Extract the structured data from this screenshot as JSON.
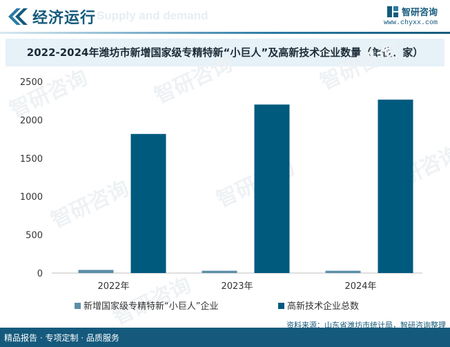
{
  "header": {
    "title": "经济运行",
    "bg_text": "Supply and demand",
    "brand_name": "智研咨询",
    "brand_url": "www.chyxx.com",
    "brand_icon": "brand-logo-icon",
    "accent_color": "#155a7c"
  },
  "footer": {
    "left_text": "精品报告 · 专项定制 · 品质服务",
    "source_text": "资料来源：山东省潍坊市统计局，智研咨询整理"
  },
  "watermark": "智研咨询",
  "chart_data": {
    "type": "bar",
    "title": "2022-2024年潍坊市新增国家级专精特新“小巨人”及高新技术企业数量（单位：家）",
    "categories": [
      "2022年",
      "2023年",
      "2024年"
    ],
    "series": [
      {
        "name": "新增国家级专精特新“小巨人”企业",
        "values": [
          41,
          30,
          30
        ],
        "color": "#5b8fa8"
      },
      {
        "name": "高新技术企业总数",
        "values": [
          1816,
          2200,
          2264
        ],
        "color": "#005a7e"
      }
    ],
    "yticks": [
      "0",
      "500",
      "1000",
      "1500",
      "2000",
      "2500"
    ],
    "ylim": [
      0,
      2500
    ],
    "grid": false,
    "legend_position": "bottom"
  }
}
